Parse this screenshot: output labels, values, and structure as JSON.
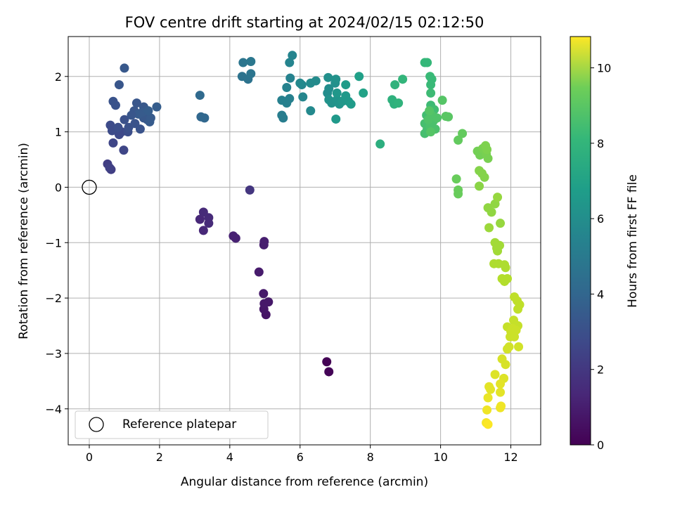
{
  "chart_data": {
    "type": "scatter",
    "title": "FOV centre drift starting at 2024/02/15 02:12:50",
    "xlabel": "Angular distance from reference (arcmin)",
    "ylabel": "Rotation from reference (arcmin)",
    "colorbar_label": "Hours from first FF file",
    "colormap": "viridis",
    "xlim": [
      -0.6,
      12.85
    ],
    "ylim": [
      -4.65,
      2.72
    ],
    "clim": [
      0,
      10.83
    ],
    "grid": true,
    "legend_position": "lower-left",
    "x_ticks": [
      0,
      2,
      4,
      6,
      8,
      10,
      12
    ],
    "y_ticks": [
      -4,
      -3,
      -2,
      -1,
      0,
      1,
      2
    ],
    "colorbar_ticks": [
      0,
      2,
      4,
      6,
      8,
      10
    ],
    "reference": {
      "label": "Reference platepar",
      "x": 0,
      "y": 0
    },
    "points": [
      [
        6.76,
        -3.15,
        0.05
      ],
      [
        6.82,
        -3.33,
        0.1
      ],
      [
        5.03,
        -2.3,
        0.6
      ],
      [
        4.97,
        -2.2,
        0.65
      ],
      [
        5.1,
        -2.07,
        0.7
      ],
      [
        4.98,
        -2.1,
        0.7
      ],
      [
        4.96,
        -1.92,
        0.75
      ],
      [
        4.83,
        -1.53,
        0.8
      ],
      [
        4.97,
        -1.04,
        0.9
      ],
      [
        4.98,
        -0.98,
        0.9
      ],
      [
        4.17,
        -0.92,
        1.0
      ],
      [
        4.1,
        -0.88,
        1.0
      ],
      [
        3.25,
        -0.78,
        1.2
      ],
      [
        3.15,
        -0.58,
        1.2
      ],
      [
        3.4,
        -0.55,
        1.3
      ],
      [
        3.4,
        -0.65,
        1.3
      ],
      [
        3.25,
        -0.45,
        1.3
      ],
      [
        4.57,
        -0.05,
        1.7
      ],
      [
        0.62,
        0.32,
        2.0
      ],
      [
        0.52,
        0.42,
        2.0
      ],
      [
        0.58,
        0.35,
        2.1
      ],
      [
        0.68,
        0.8,
        2.3
      ],
      [
        0.98,
        0.67,
        2.3
      ],
      [
        0.92,
        1.0,
        2.4
      ],
      [
        0.85,
        0.95,
        2.4
      ],
      [
        0.75,
        1.05,
        2.5
      ],
      [
        0.6,
        1.12,
        2.5
      ],
      [
        0.65,
        1.02,
        2.5
      ],
      [
        0.82,
        1.08,
        2.6
      ],
      [
        1.1,
        1.0,
        2.6
      ],
      [
        1.12,
        1.08,
        2.7
      ],
      [
        1.0,
        1.22,
        2.7
      ],
      [
        1.3,
        1.15,
        2.8
      ],
      [
        1.45,
        1.05,
        2.8
      ],
      [
        1.28,
        1.38,
        2.9
      ],
      [
        1.35,
        1.52,
        2.9
      ],
      [
        1.55,
        1.25,
        3.0
      ],
      [
        1.55,
        1.45,
        3.0
      ],
      [
        1.65,
        1.22,
        3.0
      ],
      [
        1.72,
        1.18,
        3.1
      ],
      [
        1.75,
        1.25,
        3.1
      ],
      [
        1.5,
        1.35,
        3.1
      ],
      [
        1.4,
        1.32,
        3.1
      ],
      [
        1.68,
        1.38,
        3.2
      ],
      [
        1.92,
        1.45,
        3.2
      ],
      [
        1.2,
        1.3,
        2.9
      ],
      [
        0.68,
        1.55,
        2.8
      ],
      [
        0.75,
        1.48,
        2.8
      ],
      [
        0.85,
        1.85,
        2.9
      ],
      [
        1.0,
        2.15,
        3.0
      ],
      [
        3.18,
        1.27,
        3.6
      ],
      [
        3.28,
        1.25,
        3.6
      ],
      [
        3.15,
        1.66,
        3.7
      ],
      [
        4.35,
        2.0,
        4.1
      ],
      [
        4.52,
        1.95,
        4.1
      ],
      [
        4.6,
        2.05,
        4.2
      ],
      [
        4.38,
        2.25,
        4.2
      ],
      [
        4.6,
        2.27,
        4.3
      ],
      [
        5.48,
        1.3,
        4.6
      ],
      [
        5.52,
        1.25,
        4.6
      ],
      [
        5.48,
        1.57,
        4.7
      ],
      [
        5.62,
        1.52,
        4.7
      ],
      [
        5.7,
        1.6,
        4.7
      ],
      [
        5.62,
        1.8,
        4.8
      ],
      [
        5.72,
        1.97,
        4.8
      ],
      [
        5.7,
        2.25,
        4.9
      ],
      [
        5.78,
        2.38,
        4.9
      ],
      [
        6.05,
        1.85,
        5.0
      ],
      [
        6.08,
        1.63,
        5.0
      ],
      [
        6.3,
        1.38,
        5.1
      ],
      [
        6.0,
        1.88,
        5.1
      ],
      [
        6.3,
        1.88,
        5.2
      ],
      [
        6.45,
        1.92,
        5.2
      ],
      [
        6.78,
        1.7,
        5.3
      ],
      [
        6.82,
        1.78,
        5.3
      ],
      [
        6.8,
        1.98,
        5.4
      ],
      [
        7.0,
        1.88,
        5.4
      ],
      [
        7.02,
        1.95,
        5.5
      ],
      [
        6.82,
        1.58,
        5.5
      ],
      [
        6.9,
        1.52,
        5.5
      ],
      [
        7.05,
        1.58,
        5.6
      ],
      [
        7.12,
        1.5,
        5.6
      ],
      [
        7.2,
        1.55,
        5.7
      ],
      [
        7.05,
        1.7,
        5.7
      ],
      [
        7.3,
        1.65,
        5.8
      ],
      [
        7.38,
        1.55,
        5.8
      ],
      [
        7.45,
        1.5,
        5.9
      ],
      [
        7.02,
        1.23,
        5.8
      ],
      [
        7.3,
        1.85,
        5.9
      ],
      [
        7.68,
        2.0,
        6.1
      ],
      [
        7.8,
        1.7,
        6.2
      ],
      [
        8.28,
        0.78,
        6.8
      ],
      [
        8.62,
        1.58,
        6.9
      ],
      [
        8.68,
        1.5,
        6.9
      ],
      [
        8.8,
        1.52,
        7.0
      ],
      [
        8.7,
        1.85,
        7.0
      ],
      [
        8.92,
        1.95,
        7.1
      ],
      [
        9.55,
        2.25,
        7.2
      ],
      [
        9.62,
        2.25,
        7.2
      ],
      [
        9.7,
        2.0,
        7.3
      ],
      [
        9.75,
        1.95,
        7.3
      ],
      [
        9.72,
        1.85,
        7.3
      ],
      [
        9.72,
        1.7,
        7.4
      ],
      [
        9.72,
        1.48,
        7.4
      ],
      [
        9.82,
        1.4,
        7.5
      ],
      [
        9.6,
        1.3,
        7.5
      ],
      [
        9.55,
        1.15,
        7.6
      ],
      [
        9.62,
        1.05,
        7.6
      ],
      [
        9.55,
        0.97,
        7.6
      ],
      [
        9.7,
        1.1,
        7.7
      ],
      [
        9.8,
        1.2,
        7.7
      ],
      [
        9.85,
        1.05,
        7.7
      ],
      [
        9.9,
        1.25,
        7.8
      ],
      [
        9.75,
        1.3,
        7.8
      ],
      [
        9.65,
        1.22,
        7.8
      ],
      [
        9.72,
        1.0,
        7.9
      ],
      [
        9.68,
        1.38,
        7.9
      ],
      [
        10.05,
        1.57,
        7.9
      ],
      [
        10.15,
        1.28,
        8.0
      ],
      [
        10.22,
        1.27,
        8.0
      ],
      [
        10.5,
        0.85,
        8.2
      ],
      [
        10.62,
        0.97,
        8.2
      ],
      [
        10.45,
        0.15,
        8.3
      ],
      [
        10.5,
        -0.05,
        8.3
      ],
      [
        10.5,
        -0.12,
        8.3
      ],
      [
        11.05,
        0.65,
        8.5
      ],
      [
        11.12,
        0.58,
        8.5
      ],
      [
        11.2,
        0.7,
        8.6
      ],
      [
        11.3,
        0.6,
        8.6
      ],
      [
        11.35,
        0.52,
        8.6
      ],
      [
        11.28,
        0.75,
        8.7
      ],
      [
        11.32,
        0.68,
        8.7
      ],
      [
        11.1,
        0.3,
        8.8
      ],
      [
        11.18,
        0.25,
        8.8
      ],
      [
        11.25,
        0.18,
        8.8
      ],
      [
        11.1,
        0.02,
        8.9
      ],
      [
        11.35,
        -0.37,
        9.0
      ],
      [
        11.45,
        -0.45,
        9.0
      ],
      [
        11.55,
        -0.3,
        9.0
      ],
      [
        11.62,
        -0.18,
        9.1
      ],
      [
        11.7,
        -0.65,
        9.1
      ],
      [
        11.38,
        -0.73,
        9.2
      ],
      [
        11.55,
        -1.0,
        9.3
      ],
      [
        11.6,
        -1.1,
        9.3
      ],
      [
        11.62,
        -1.15,
        9.3
      ],
      [
        11.68,
        -1.05,
        9.3
      ],
      [
        11.52,
        -1.38,
        9.5
      ],
      [
        11.65,
        -1.38,
        9.5
      ],
      [
        11.82,
        -1.4,
        9.5
      ],
      [
        11.85,
        -1.45,
        9.5
      ],
      [
        11.75,
        -1.65,
        9.6
      ],
      [
        11.82,
        -1.7,
        9.6
      ],
      [
        11.9,
        -1.65,
        9.6
      ],
      [
        12.1,
        -1.98,
        9.8
      ],
      [
        12.18,
        -2.05,
        9.8
      ],
      [
        12.2,
        -2.2,
        9.8
      ],
      [
        12.25,
        -2.12,
        9.8
      ],
      [
        12.08,
        -2.4,
        9.9
      ],
      [
        12.2,
        -2.5,
        9.9
      ],
      [
        11.9,
        -2.52,
        9.9
      ],
      [
        12.0,
        -2.6,
        10.0
      ],
      [
        12.05,
        -2.55,
        10.0
      ],
      [
        12.15,
        -2.58,
        10.0
      ],
      [
        11.98,
        -2.7,
        10.0
      ],
      [
        12.1,
        -2.7,
        10.0
      ],
      [
        11.95,
        -2.88,
        10.1
      ],
      [
        11.9,
        -2.92,
        10.1
      ],
      [
        12.22,
        -2.88,
        10.1
      ],
      [
        11.75,
        -3.1,
        10.2
      ],
      [
        11.85,
        -3.2,
        10.2
      ],
      [
        11.55,
        -3.38,
        10.3
      ],
      [
        11.8,
        -3.45,
        10.3
      ],
      [
        11.7,
        -3.55,
        10.4
      ],
      [
        11.38,
        -3.6,
        10.4
      ],
      [
        11.42,
        -3.65,
        10.4
      ],
      [
        11.7,
        -3.7,
        10.4
      ],
      [
        11.35,
        -3.8,
        10.5
      ],
      [
        11.72,
        -3.95,
        10.6
      ],
      [
        11.7,
        -3.98,
        10.6
      ],
      [
        11.32,
        -4.02,
        10.6
      ],
      [
        11.3,
        -4.25,
        10.7
      ],
      [
        11.35,
        -4.28,
        10.8
      ]
    ]
  }
}
